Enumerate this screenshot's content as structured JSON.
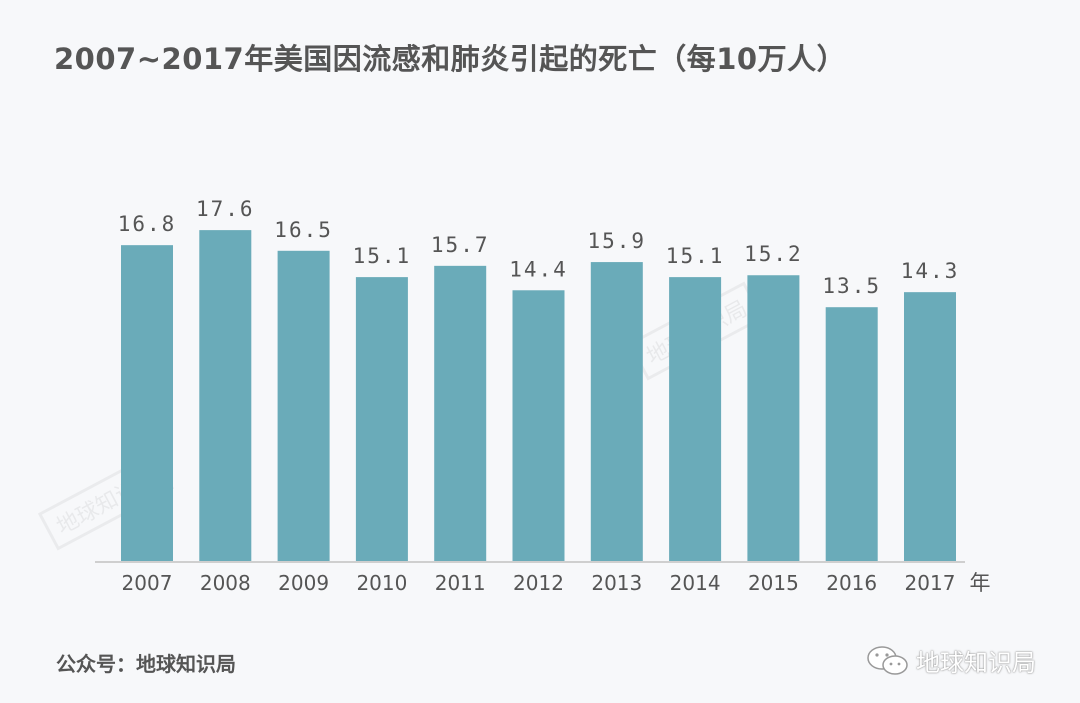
{
  "chart_data": {
    "type": "bar",
    "title": "2007~2017年美国因流感和肺炎引起的死亡（每10万人）",
    "categories": [
      "2007",
      "2008",
      "2009",
      "2010",
      "2011",
      "2012",
      "2013",
      "2014",
      "2015",
      "2016",
      "2017"
    ],
    "values": [
      16.8,
      17.6,
      16.5,
      15.1,
      15.7,
      14.4,
      15.9,
      15.1,
      15.2,
      13.5,
      14.3
    ],
    "value_labels": [
      "16.8",
      "17.6",
      "16.5",
      "15.1",
      "15.7",
      "14.4",
      "15.9",
      "15.1",
      "15.2",
      "13.5",
      "14.3"
    ],
    "xlabel": "年",
    "ylabel": "",
    "ylim": [
      0,
      18
    ],
    "grid": false,
    "bar_color": "#6aabb9"
  },
  "footer": {
    "source": "公众号：地球知识局",
    "brand": "地球知识局",
    "brand_icon": "wechat-icon"
  },
  "watermark": "地球知识局"
}
